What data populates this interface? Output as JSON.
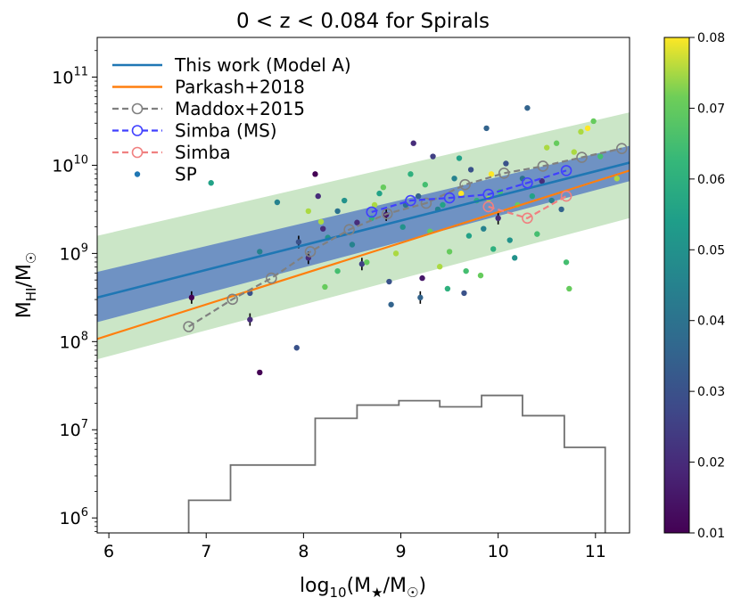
{
  "chart_data": {
    "type": "scatter",
    "title": "0 < z < 0.084 for Spirals",
    "xlabel": "log10(M★/M☉)",
    "ylabel": "MHI/M☉",
    "xlim": [
      5.88,
      11.35
    ],
    "ylim_log10": [
      5.83,
      11.45
    ],
    "x_ticks": [
      6,
      7,
      8,
      9,
      10,
      11
    ],
    "y_ticks_log10": [
      6,
      7,
      8,
      9,
      10,
      11
    ],
    "y_tick_labels": [
      {
        "base": "10",
        "exp": "6"
      },
      {
        "base": "10",
        "exp": "7"
      },
      {
        "base": "10",
        "exp": "8"
      },
      {
        "base": "10",
        "exp": "9"
      },
      {
        "base": "10",
        "exp": "10"
      },
      {
        "base": "10",
        "exp": "11"
      }
    ],
    "colorbar": {
      "label_values": [
        "0.01",
        "0.02",
        "0.03",
        "0.04",
        "0.05",
        "0.06",
        "0.07",
        "0.08"
      ],
      "min": 0.01,
      "max": 0.08,
      "colormap": "viridis"
    },
    "legend": {
      "position": "top-left",
      "entries": [
        {
          "label": "This work (Model A)",
          "color": "#1f77b4",
          "style": "line"
        },
        {
          "label": "Parkash+2018",
          "color": "#ff7f0e",
          "style": "line"
        },
        {
          "label": "Maddox+2015",
          "color": "#808080",
          "style": "dashed-circle"
        },
        {
          "label": "Simba (MS)",
          "color": "#4040ff",
          "style": "dashed-circle"
        },
        {
          "label": "Simba",
          "color": "#f08080",
          "style": "dashed-circle"
        },
        {
          "label": "SP",
          "color": "#1f77b4",
          "style": "dot"
        }
      ]
    },
    "series": [
      {
        "name": "This work (Model A)",
        "type": "line",
        "color": "#1f77b4",
        "x": [
          5.88,
          11.35
        ],
        "log_y": [
          8.5,
          10.03
        ],
        "band_lower_log_y": [
          8.22,
          9.82
        ],
        "band_upper_log_y": [
          8.79,
          10.22
        ],
        "band_color": "#5f82c2"
      },
      {
        "name": "This work outer band",
        "type": "band",
        "color": "#a8d5a2",
        "x": [
          5.88,
          11.35
        ],
        "lower_log_y": [
          7.8,
          9.4
        ],
        "upper_log_y": [
          9.2,
          10.6
        ]
      },
      {
        "name": "Parkash+2018",
        "type": "line",
        "color": "#ff7f0e",
        "x": [
          5.88,
          11.35
        ],
        "log_y": [
          8.03,
          9.94
        ]
      },
      {
        "name": "Maddox+2015",
        "type": "dashed-circle",
        "color": "#808080",
        "x": [
          6.82,
          7.27,
          7.67,
          8.07,
          8.47,
          8.86,
          9.26,
          9.66,
          10.06,
          10.46,
          10.86,
          11.27
        ],
        "log_y": [
          8.17,
          8.48,
          8.72,
          9.02,
          9.27,
          9.45,
          9.57,
          9.78,
          9.91,
          9.99,
          10.09,
          10.19
        ]
      },
      {
        "name": "Simba (MS)",
        "type": "dashed-circle",
        "color": "#4040ff",
        "x": [
          8.7,
          9.1,
          9.5,
          9.9,
          10.3,
          10.7
        ],
        "log_y": [
          9.47,
          9.6,
          9.63,
          9.67,
          9.8,
          9.94
        ]
      },
      {
        "name": "Simba",
        "type": "dashed-circle",
        "color": "#f08080",
        "x": [
          9.9,
          10.3,
          10.7
        ],
        "log_y": [
          9.53,
          9.4,
          9.65
        ]
      },
      {
        "name": "stellar mass histogram",
        "type": "step",
        "color": "#707070",
        "edges": [
          6.82,
          7.25,
          7.68,
          8.12,
          8.55,
          8.98,
          9.4,
          9.83,
          10.25,
          10.68,
          11.1
        ],
        "log_heights": [
          6.2,
          6.6,
          6.6,
          7.13,
          7.28,
          7.33,
          7.26,
          7.39,
          7.16,
          6.8
        ]
      },
      {
        "name": "SP",
        "type": "scatter",
        "points": [
          [
            7.05,
            9.8,
            0.055
          ],
          [
            6.85,
            8.5,
            0.01
          ],
          [
            7.55,
            7.65,
            0.01
          ],
          [
            7.55,
            9.02,
            0.045
          ],
          [
            7.45,
            8.25,
            0.02
          ],
          [
            7.45,
            8.55,
            0.03
          ],
          [
            7.93,
            7.93,
            0.03
          ],
          [
            7.95,
            9.13,
            0.03
          ],
          [
            7.73,
            9.58,
            0.045
          ],
          [
            8.05,
            9.48,
            0.075
          ],
          [
            8.05,
            8.95,
            0.02
          ],
          [
            8.12,
            9.9,
            0.01
          ],
          [
            8.15,
            9.65,
            0.02
          ],
          [
            8.18,
            9.36,
            0.075
          ],
          [
            8.2,
            9.28,
            0.02
          ],
          [
            8.25,
            9.18,
            0.05
          ],
          [
            8.22,
            8.62,
            0.07
          ],
          [
            8.35,
            8.8,
            0.065
          ],
          [
            8.35,
            9.48,
            0.04
          ],
          [
            8.42,
            9.6,
            0.05
          ],
          [
            8.5,
            9.1,
            0.045
          ],
          [
            8.55,
            9.35,
            0.02
          ],
          [
            8.6,
            8.88,
            0.025
          ],
          [
            8.65,
            8.9,
            0.07
          ],
          [
            8.7,
            9.4,
            0.06
          ],
          [
            8.73,
            9.55,
            0.075
          ],
          [
            8.78,
            9.68,
            0.055
          ],
          [
            8.82,
            9.75,
            0.07
          ],
          [
            8.85,
            9.44,
            0.015
          ],
          [
            8.88,
            8.68,
            0.03
          ],
          [
            8.9,
            8.42,
            0.035
          ],
          [
            8.95,
            9.0,
            0.075
          ],
          [
            9.02,
            9.3,
            0.05
          ],
          [
            9.05,
            9.55,
            0.04
          ],
          [
            9.1,
            9.9,
            0.06
          ],
          [
            9.13,
            10.25,
            0.02
          ],
          [
            9.18,
            9.65,
            0.035
          ],
          [
            9.2,
            8.5,
            0.035
          ],
          [
            9.22,
            8.72,
            0.015
          ],
          [
            9.25,
            9.78,
            0.065
          ],
          [
            9.3,
            9.25,
            0.07
          ],
          [
            9.33,
            10.1,
            0.025
          ],
          [
            9.38,
            9.5,
            0.045
          ],
          [
            9.4,
            8.85,
            0.075
          ],
          [
            9.43,
            9.55,
            0.055
          ],
          [
            9.48,
            8.6,
            0.06
          ],
          [
            9.5,
            9.02,
            0.07
          ],
          [
            9.55,
            9.85,
            0.045
          ],
          [
            9.6,
            10.08,
            0.055
          ],
          [
            9.62,
            9.68,
            0.08
          ],
          [
            9.65,
            8.55,
            0.03
          ],
          [
            9.67,
            8.8,
            0.065
          ],
          [
            9.7,
            9.2,
            0.055
          ],
          [
            9.72,
            9.95,
            0.03
          ],
          [
            9.78,
            9.6,
            0.06
          ],
          [
            9.82,
            8.75,
            0.07
          ],
          [
            9.85,
            9.28,
            0.045
          ],
          [
            9.88,
            10.42,
            0.035
          ],
          [
            9.9,
            9.62,
            0.075
          ],
          [
            9.93,
            9.9,
            0.08
          ],
          [
            9.95,
            9.05,
            0.06
          ],
          [
            10.0,
            9.4,
            0.02
          ],
          [
            10.02,
            9.7,
            0.065
          ],
          [
            10.08,
            10.02,
            0.03
          ],
          [
            10.12,
            9.15,
            0.05
          ],
          [
            10.17,
            8.95,
            0.05
          ],
          [
            10.2,
            9.55,
            0.07
          ],
          [
            10.25,
            9.85,
            0.04
          ],
          [
            10.3,
            10.65,
            0.035
          ],
          [
            10.35,
            9.65,
            0.055
          ],
          [
            10.4,
            9.22,
            0.065
          ],
          [
            10.45,
            9.82,
            0.02
          ],
          [
            10.5,
            10.2,
            0.075
          ],
          [
            10.55,
            9.6,
            0.045
          ],
          [
            10.6,
            10.25,
            0.07
          ],
          [
            10.65,
            9.5,
            0.035
          ],
          [
            10.7,
            8.9,
            0.065
          ],
          [
            10.73,
            8.6,
            0.07
          ],
          [
            10.78,
            10.15,
            0.075
          ],
          [
            10.85,
            10.38,
            0.075
          ],
          [
            10.92,
            10.42,
            0.08
          ],
          [
            10.98,
            10.5,
            0.07
          ],
          [
            11.05,
            10.1,
            0.065
          ],
          [
            11.22,
            9.85,
            0.075
          ]
        ]
      }
    ]
  }
}
